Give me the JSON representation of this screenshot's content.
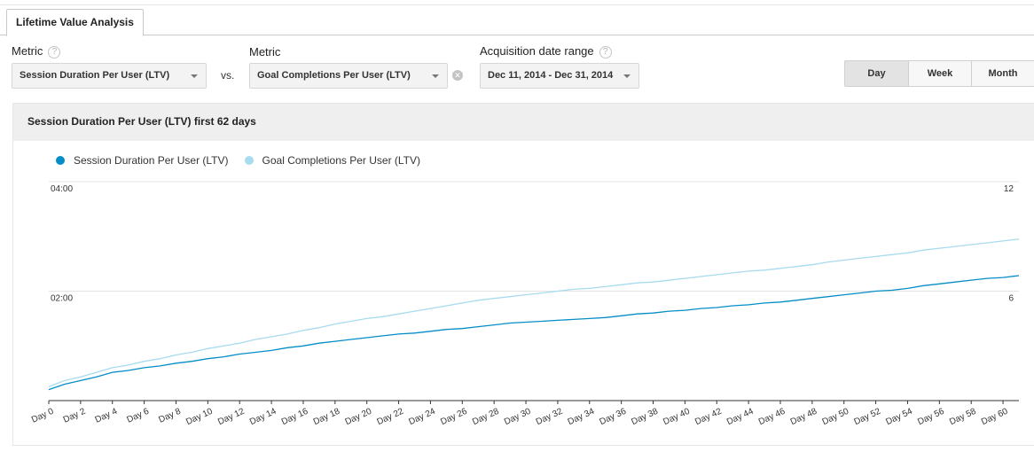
{
  "tab": {
    "label": "Lifetime Value Analysis"
  },
  "controls": {
    "metric1": {
      "label": "Metric",
      "help": "?",
      "value": "Session Duration Per User (LTV)"
    },
    "vs_label": "vs.",
    "metric2": {
      "label": "Metric",
      "value": "Goal Completions Per User (LTV)",
      "clear_icon": "clear-icon"
    },
    "date_range": {
      "label": "Acquisition date range",
      "help": "?",
      "value": "Dec 11, 2014 - Dec 31, 2014"
    },
    "granularity": {
      "options": [
        "Day",
        "Week",
        "Month"
      ],
      "selected": "Day"
    }
  },
  "colors": {
    "primary": "#058dc7",
    "secondary": "#a8dbee",
    "grid": "#e3e3e3",
    "axis": "#333333"
  },
  "chart_data": {
    "type": "line",
    "title": "Session Duration Per User (LTV) first 62 days",
    "legend_position": "top-left",
    "grid": true,
    "x_tick_labels": [
      "Day 0",
      "Day 2",
      "Day 4",
      "Day 6",
      "Day 8",
      "Day 10",
      "Day 12",
      "Day 14",
      "Day 16",
      "Day 18",
      "Day 20",
      "Day 22",
      "Day 24",
      "Day 26",
      "Day 28",
      "Day 30",
      "Day 32",
      "Day 34",
      "Day 36",
      "Day 38",
      "Day 40",
      "Day 42",
      "Day 44",
      "Day 46",
      "Day 48",
      "Day 50",
      "Day 52",
      "Day 54",
      "Day 56",
      "Day 58",
      "Day 60"
    ],
    "x": [
      0,
      1,
      2,
      3,
      4,
      5,
      6,
      7,
      8,
      9,
      10,
      11,
      12,
      13,
      14,
      15,
      16,
      17,
      18,
      19,
      20,
      21,
      22,
      23,
      24,
      25,
      26,
      27,
      28,
      29,
      30,
      31,
      32,
      33,
      34,
      35,
      36,
      37,
      38,
      39,
      40,
      41,
      42,
      43,
      44,
      45,
      46,
      47,
      48,
      49,
      50,
      51,
      52,
      53,
      54,
      55,
      56,
      57,
      58,
      59,
      60,
      61
    ],
    "y_left": {
      "label": "",
      "ticks": [
        "02:00",
        "04:00"
      ],
      "range_seconds": [
        0,
        240
      ]
    },
    "y_right": {
      "label": "",
      "ticks": [
        "6",
        "12"
      ],
      "range": [
        0,
        12
      ]
    },
    "series": [
      {
        "name": "Session Duration Per User (LTV)",
        "axis": "left",
        "color": "#058dc7",
        "values": [
          12,
          18,
          22,
          26,
          31,
          33,
          36,
          38,
          41,
          43,
          46,
          48,
          51,
          53,
          55,
          58,
          60,
          63,
          65,
          67,
          69,
          71,
          73,
          74,
          76,
          78,
          79,
          81,
          83,
          85,
          86,
          87,
          88,
          89,
          90,
          91,
          93,
          95,
          96,
          98,
          99,
          101,
          102,
          104,
          105,
          107,
          108,
          110,
          112,
          114,
          116,
          118,
          120,
          121,
          123,
          126,
          128,
          130,
          132,
          134,
          135,
          137
        ]
      },
      {
        "name": "Goal Completions Per User (LTV)",
        "axis": "right",
        "color": "#a8dbee",
        "values": [
          0.76,
          1.1,
          1.3,
          1.55,
          1.8,
          1.95,
          2.15,
          2.3,
          2.5,
          2.65,
          2.85,
          3.0,
          3.15,
          3.35,
          3.5,
          3.65,
          3.85,
          4.0,
          4.2,
          4.35,
          4.5,
          4.6,
          4.75,
          4.9,
          5.05,
          5.2,
          5.35,
          5.5,
          5.6,
          5.7,
          5.8,
          5.9,
          6.0,
          6.1,
          6.15,
          6.25,
          6.35,
          6.45,
          6.5,
          6.6,
          6.7,
          6.8,
          6.9,
          7.0,
          7.1,
          7.15,
          7.25,
          7.35,
          7.45,
          7.6,
          7.7,
          7.8,
          7.9,
          8.0,
          8.1,
          8.25,
          8.35,
          8.45,
          8.55,
          8.65,
          8.75,
          8.85
        ]
      }
    ]
  }
}
